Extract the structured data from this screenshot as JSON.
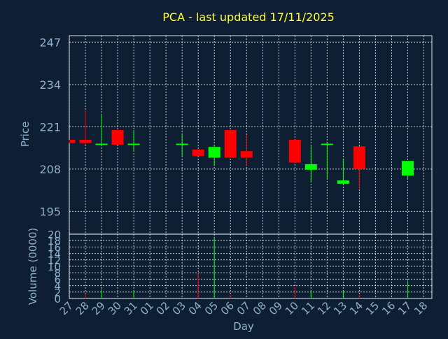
{
  "chart_data": [
    {
      "type": "candlestick",
      "title": "PCA - last updated 17/11/2025",
      "xlabel": "Day",
      "ylabel": "Price",
      "ylim": [
        188,
        249
      ],
      "yticks": [
        195,
        208,
        221,
        234,
        247
      ],
      "grid": true,
      "colors": {
        "up": "#00ff00",
        "down": "#ff0000",
        "background": "#0f1f33",
        "text": "#8fb0cc",
        "title": "#ffff33"
      },
      "x_ticks": [
        "27",
        "28",
        "29",
        "30",
        "31",
        "01",
        "02",
        "03",
        "04",
        "05",
        "06",
        "07",
        "08",
        "09",
        "10",
        "11",
        "12",
        "13",
        "14",
        "15",
        "16",
        "17",
        "18"
      ],
      "candles": [
        {
          "day": "27",
          "open": 217.0,
          "high": 217.0,
          "low": 216.0,
          "close": 216.0
        },
        {
          "day": "28",
          "open": 217.0,
          "high": 226.0,
          "low": 215.5,
          "close": 216.0
        },
        {
          "day": "29",
          "open": 215.5,
          "high": 225.0,
          "low": 215.0,
          "close": 215.8
        },
        {
          "day": "30",
          "open": 220.0,
          "high": 220.0,
          "low": 215.5,
          "close": 215.5
        },
        {
          "day": "31",
          "open": 215.5,
          "high": 220.0,
          "low": 213.5,
          "close": 215.8
        },
        {
          "day": "03",
          "open": 215.5,
          "high": 219.0,
          "low": 212.0,
          "close": 215.8
        },
        {
          "day": "04",
          "open": 214.0,
          "high": 214.0,
          "low": 212.0,
          "close": 212.0
        },
        {
          "day": "05",
          "open": 211.5,
          "high": 215.5,
          "low": 209.0,
          "close": 214.8
        },
        {
          "day": "06",
          "open": 220.0,
          "high": 220.0,
          "low": 211.5,
          "close": 211.5
        },
        {
          "day": "07",
          "open": 213.5,
          "high": 218.5,
          "low": 209.0,
          "close": 211.5
        },
        {
          "day": "10",
          "open": 217.0,
          "high": 217.0,
          "low": 210.0,
          "close": 210.0
        },
        {
          "day": "11",
          "open": 207.8,
          "high": 215.0,
          "low": 204.0,
          "close": 209.5
        },
        {
          "day": "12",
          "open": 215.5,
          "high": 216.0,
          "low": 205.0,
          "close": 215.8
        },
        {
          "day": "13",
          "open": 203.5,
          "high": 211.0,
          "low": 203.5,
          "close": 204.5
        },
        {
          "day": "14",
          "open": 215.0,
          "high": 215.0,
          "low": 202.0,
          "close": 208.0
        },
        {
          "day": "17",
          "open": 206.0,
          "high": 210.5,
          "low": 205.0,
          "close": 210.5
        }
      ]
    },
    {
      "type": "bar",
      "ylabel": "Volume (0000)",
      "ylim": [
        0,
        20
      ],
      "yticks": [
        0,
        2,
        4,
        6,
        8,
        10,
        12,
        14,
        16,
        18,
        20
      ],
      "grid": true,
      "bars": [
        {
          "day": "28",
          "value": 1.5,
          "direction": "down"
        },
        {
          "day": "29",
          "value": 2.8,
          "direction": "up"
        },
        {
          "day": "31",
          "value": 2.5,
          "direction": "up"
        },
        {
          "day": "04",
          "value": 8.0,
          "direction": "down"
        },
        {
          "day": "05",
          "value": 19.0,
          "direction": "up"
        },
        {
          "day": "06",
          "value": 1.0,
          "direction": "down"
        },
        {
          "day": "10",
          "value": 3.5,
          "direction": "down"
        },
        {
          "day": "11",
          "value": 2.5,
          "direction": "up"
        },
        {
          "day": "13",
          "value": 2.5,
          "direction": "up"
        },
        {
          "day": "14",
          "value": 1.0,
          "direction": "down"
        },
        {
          "day": "17",
          "value": 5.5,
          "direction": "up"
        }
      ]
    }
  ]
}
